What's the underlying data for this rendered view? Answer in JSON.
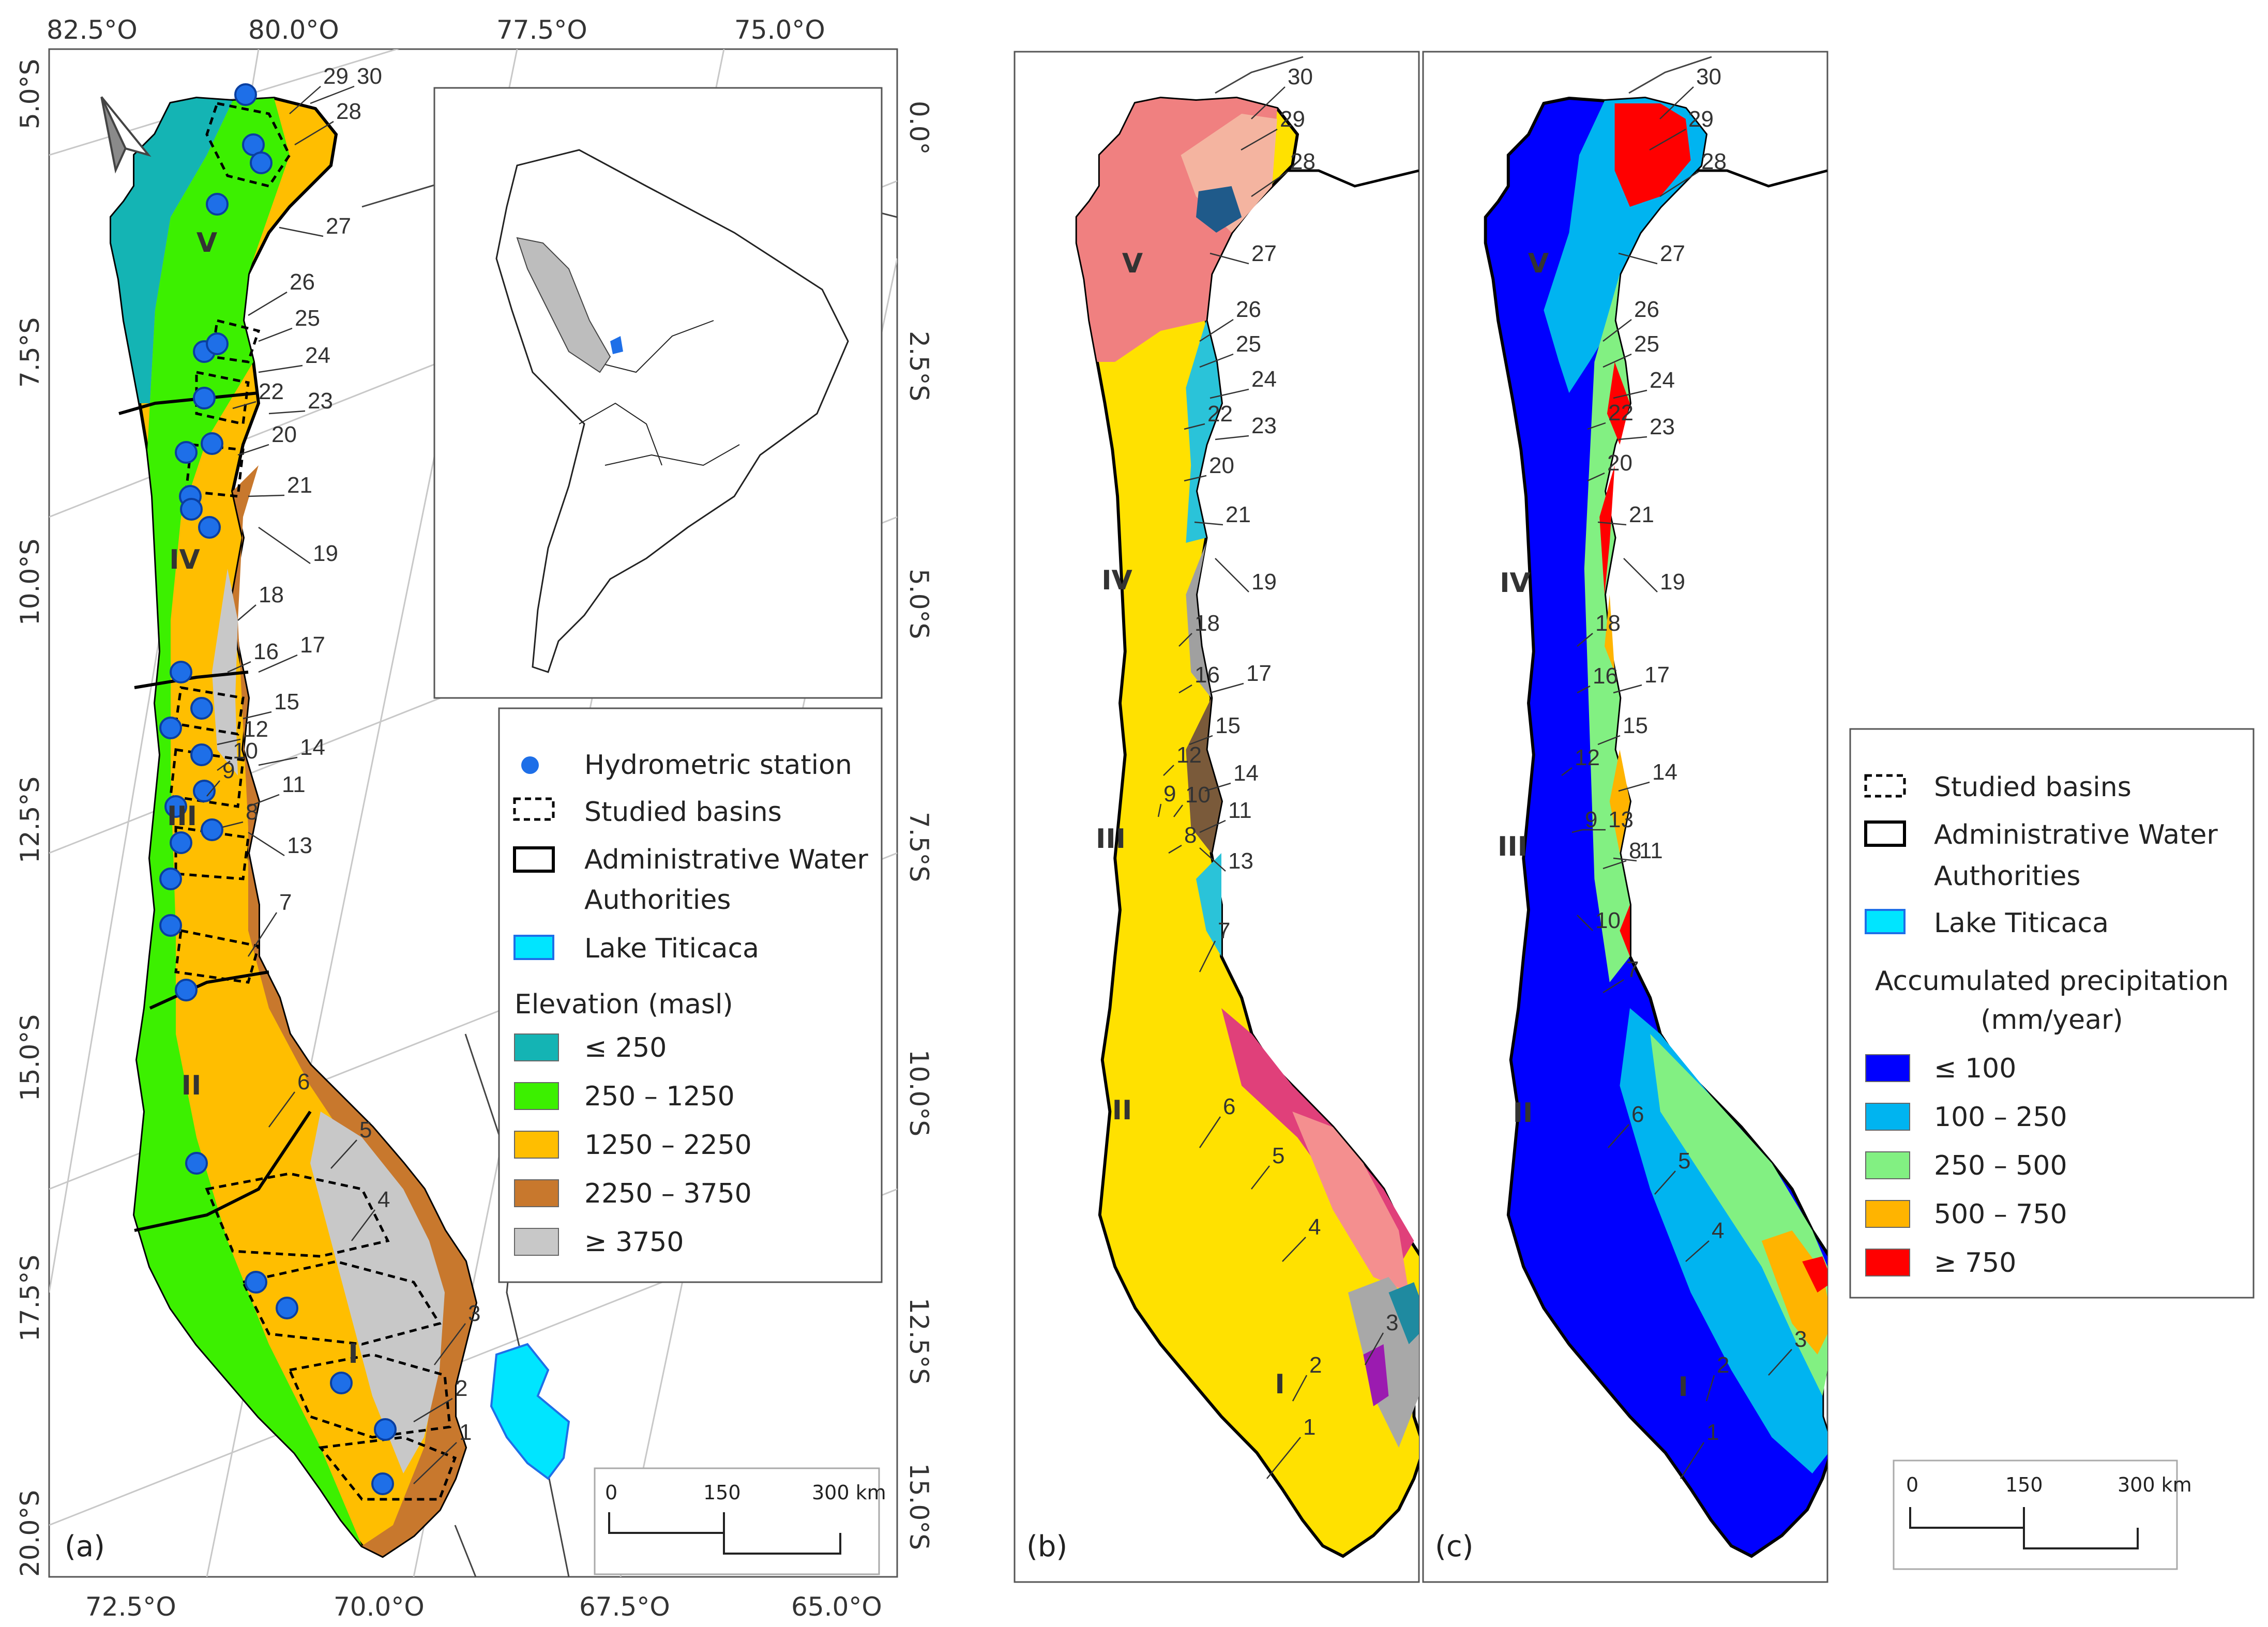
{
  "panel_a": {
    "label": "(a)",
    "ticks_top": [
      "82.5°O",
      "80.0°O",
      "77.5°O",
      "75.0°O"
    ],
    "ticks_bottom": [
      "72.5°O",
      "70.0°O",
      "67.5°O",
      "65.0°O"
    ],
    "ticks_left": [
      "5.0°S",
      "7.5°S",
      "10.0°S",
      "12.5°S",
      "15.0°S",
      "17.5°S",
      "20.0°S"
    ],
    "ticks_right": [
      "0.0°",
      "2.5°S",
      "5.0°S",
      "7.5°S",
      "10.0°S",
      "12.5°S",
      "15.0°S"
    ],
    "legend": {
      "hydrometric": "Hydrometric station",
      "studied": "Studied basins",
      "authorities_1": "Administrative Water",
      "authorities_2": "Authorities",
      "titicaca": "Lake Titicaca",
      "elev_title": "Elevation (masl)",
      "classes": [
        {
          "label": "≤ 250",
          "color": "#14b4b4"
        },
        {
          "label": "250 – 1250",
          "color": "#3cf000"
        },
        {
          "label": "1250 – 2250",
          "color": "#ffbe00"
        },
        {
          "label": "2250 – 3750",
          "color": "#c8782d"
        },
        {
          "label": "≥ 3750",
          "color": "#c8c8c8"
        }
      ]
    },
    "scale": {
      "s0": "0",
      "s1": "150",
      "s2": "300 km"
    }
  },
  "panel_b": {
    "label": "(b)"
  },
  "panel_c": {
    "label": "(c)",
    "legend": {
      "studied": "Studied basins",
      "authorities_1": "Administrative Water",
      "authorities_2": "Authorities",
      "titicaca": "Lake Titicaca",
      "precip_title_1": "Accumulated precipitation",
      "precip_title_2": "(mm/year)",
      "classes": [
        {
          "label": "≤ 100",
          "color": "#0000ff"
        },
        {
          "label": "100 – 250",
          "color": "#00b4f0"
        },
        {
          "label": "250 – 500",
          "color": "#82f082"
        },
        {
          "label": "500 – 750",
          "color": "#ffb400"
        },
        {
          "label": "≥ 750",
          "color": "#ff0000"
        }
      ]
    },
    "scale": {
      "s0": "0",
      "s1": "150",
      "s2": "300 km"
    }
  },
  "roman_labels": [
    "I",
    "II",
    "III",
    "IV",
    "V"
  ],
  "basin_numbers": [
    "1",
    "2",
    "3",
    "4",
    "5",
    "6",
    "7",
    "8",
    "9",
    "10",
    "11",
    "12",
    "13",
    "14",
    "15",
    "16",
    "17",
    "18",
    "19",
    "20",
    "21",
    "22",
    "23",
    "24",
    "25",
    "26",
    "27",
    "28",
    "29",
    "30"
  ],
  "colors": {
    "station": "#1e6fe8",
    "lake": "#00e5ff",
    "peru_inset": "#bdbdbd"
  }
}
